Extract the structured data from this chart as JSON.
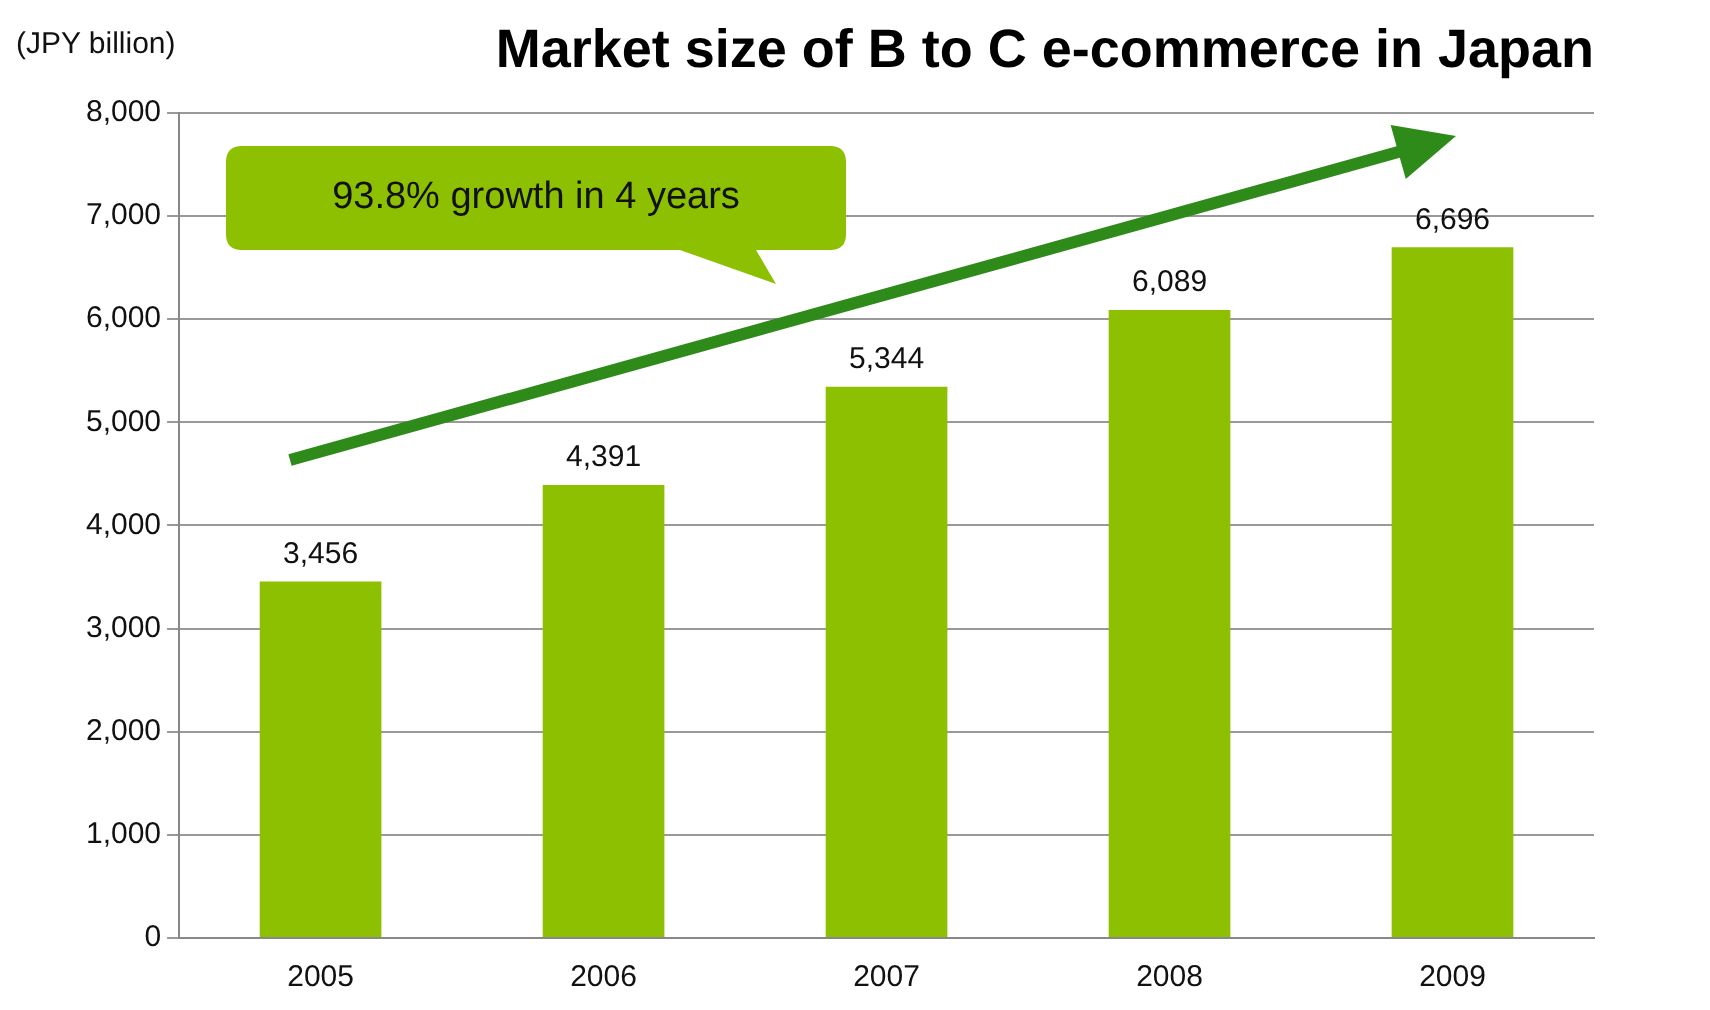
{
  "chart_data": {
    "type": "bar",
    "title": "Market size of B to C e-commerce in Japan",
    "ylabel": "(JPY billion)",
    "categories": [
      "2005",
      "2006",
      "2007",
      "2008",
      "2009"
    ],
    "values": [
      3456,
      4391,
      5344,
      6089,
      6696
    ],
    "color": "#8cc000",
    "ylim": [
      0,
      8000
    ],
    "yticks": [
      {
        "value": 0,
        "label": "0"
      },
      {
        "value": 1000,
        "label": "1,000"
      },
      {
        "value": 2000,
        "label": "2,000"
      },
      {
        "value": 3000,
        "label": "3,000"
      },
      {
        "value": 4000,
        "label": "4,000"
      },
      {
        "value": 5000,
        "label": "5,000"
      },
      {
        "value": 6000,
        "label": "6,000"
      },
      {
        "value": 7000,
        "label": "7,000"
      },
      {
        "value": 8000,
        "label": "8,000"
      }
    ],
    "value_labels": [
      "3,456",
      "4,391",
      "5,344",
      "6,089",
      "6,696"
    ],
    "grid": "y",
    "legend": false,
    "annotations": [
      "93.8% growth in 4 years"
    ]
  }
}
